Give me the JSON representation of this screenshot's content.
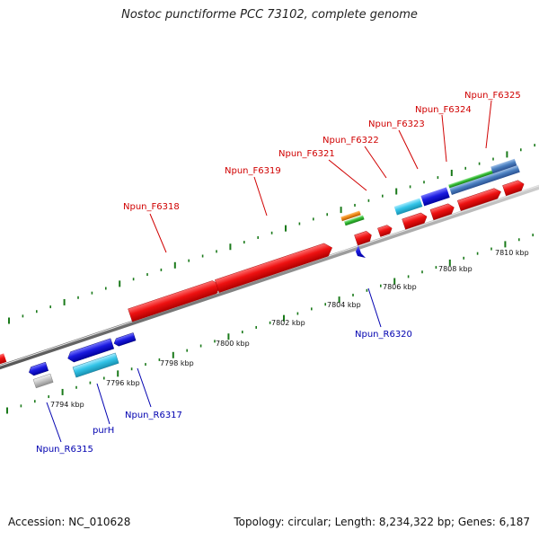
{
  "title": "Nostoc punctiforme PCC 73102, complete genome",
  "footer": {
    "accession": "Accession: NC_010628",
    "topology": "Topology: circular; Length: 8,234,322 bp; Genes: 6,187"
  },
  "colors": {
    "forward_label": "#d00000",
    "reverse_label": "#0000b0",
    "backbone": "#8a8a8a",
    "tick": "#1a7a1a",
    "red_gene": "#ee1111",
    "blue_gene": "#1a1adf",
    "cyan_gene": "#33c4e8",
    "green_gene": "#33bb33",
    "orange_gene": "#f08a1a",
    "steel_gene": "#4a7fc0",
    "gray_gene": "#c8c8c8"
  },
  "forward_labels": [
    "Npun_F6318",
    "Npun_F6319",
    "Npun_F6321",
    "Npun_F6322",
    "Npun_F6323",
    "Npun_F6324",
    "Npun_F6325"
  ],
  "reverse_labels": [
    "Npun_R6315",
    "purH",
    "Npun_R6317",
    "Npun_R6320"
  ],
  "scale_labels": [
    "7794 kbp",
    "7796 kbp",
    "7798 kbp",
    "7800 kbp",
    "7802 kbp",
    "7804 kbp",
    "7806 kbp",
    "7808 kbp",
    "7810 kbp"
  ]
}
